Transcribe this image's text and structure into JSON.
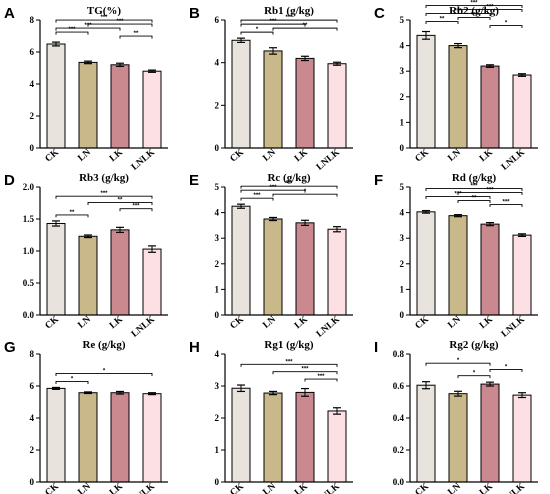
{
  "categories": [
    "CK",
    "LN",
    "LK",
    "LNLK"
  ],
  "colors": {
    "CK": "#e8e3dc",
    "LN": "#c8b88a",
    "LK": "#c9898f",
    "LNLK": "#fde0e4",
    "stroke": "#000000"
  },
  "chart_data": [
    {
      "type": "bar",
      "panel": "A",
      "title": "TG(%)",
      "categories": [
        "CK",
        "LN",
        "LK",
        "LNLK"
      ],
      "values": [
        6.5,
        5.35,
        5.2,
        4.8
      ],
      "errors": [
        0.12,
        0.08,
        0.1,
        0.07
      ],
      "ylim": [
        0,
        8
      ],
      "yticks": [
        0,
        2,
        4,
        6,
        8
      ],
      "significance": [
        {
          "from": 2,
          "to": 3,
          "label": "**"
        },
        {
          "from": 0,
          "to": 1,
          "label": "***"
        },
        {
          "from": 0,
          "to": 2,
          "label": "***"
        },
        {
          "from": 1,
          "to": 3,
          "label": "***"
        },
        {
          "from": 0,
          "to": 3,
          "label": "***"
        }
      ]
    },
    {
      "type": "bar",
      "panel": "B",
      "title": "Rb1 (g/kg)",
      "categories": [
        "CK",
        "LN",
        "LK",
        "LNLK"
      ],
      "values": [
        5.05,
        4.55,
        4.2,
        3.95
      ],
      "errors": [
        0.1,
        0.15,
        0.1,
        0.07
      ],
      "ylim": [
        0,
        6
      ],
      "yticks": [
        0,
        2,
        4,
        6
      ],
      "significance": [
        {
          "from": 0,
          "to": 1,
          "label": "*"
        },
        {
          "from": 1,
          "to": 3,
          "label": "**"
        },
        {
          "from": 0,
          "to": 2,
          "label": "***"
        },
        {
          "from": 0,
          "to": 3,
          "label": "***"
        }
      ]
    },
    {
      "type": "bar",
      "panel": "C",
      "title": "Rb2 (g/kg)",
      "categories": [
        "CK",
        "LN",
        "LK",
        "LNLK"
      ],
      "values": [
        4.4,
        4.0,
        3.2,
        2.85
      ],
      "errors": [
        0.15,
        0.08,
        0.05,
        0.05
      ],
      "ylim": [
        0,
        5
      ],
      "yticks": [
        0,
        1,
        2,
        3,
        4,
        5
      ],
      "significance": [
        {
          "from": 2,
          "to": 3,
          "label": "*"
        },
        {
          "from": 0,
          "to": 1,
          "label": "**"
        },
        {
          "from": 1,
          "to": 2,
          "label": "***"
        },
        {
          "from": 0,
          "to": 2,
          "label": "***"
        },
        {
          "from": 1,
          "to": 3,
          "label": "***"
        },
        {
          "from": 0,
          "to": 3,
          "label": "***"
        }
      ]
    },
    {
      "type": "bar",
      "panel": "D",
      "title": "Rb3 (g/kg)",
      "categories": [
        "CK",
        "LN",
        "LK",
        "LNLK"
      ],
      "values": [
        1.43,
        1.23,
        1.33,
        1.03
      ],
      "errors": [
        0.04,
        0.02,
        0.04,
        0.05
      ],
      "ylim": [
        0,
        2.0
      ],
      "yticks": [
        0.0,
        0.5,
        1.0,
        1.5,
        2.0
      ],
      "tick_decimals": 1,
      "significance": [
        {
          "from": 0,
          "to": 1,
          "label": "**"
        },
        {
          "from": 2,
          "to": 3,
          "label": "***"
        },
        {
          "from": 1,
          "to": 3,
          "label": "**"
        },
        {
          "from": 0,
          "to": 3,
          "label": "***"
        }
      ]
    },
    {
      "type": "bar",
      "panel": "E",
      "title": "Rc (g/kg)",
      "categories": [
        "CK",
        "LN",
        "LK",
        "LNLK"
      ],
      "values": [
        4.25,
        3.75,
        3.6,
        3.35
      ],
      "errors": [
        0.08,
        0.06,
        0.1,
        0.1
      ],
      "ylim": [
        0,
        5
      ],
      "yticks": [
        0,
        1,
        2,
        3,
        4,
        5
      ],
      "significance": [
        {
          "from": 0,
          "to": 1,
          "label": "***"
        },
        {
          "from": 1,
          "to": 3,
          "label": "*"
        },
        {
          "from": 0,
          "to": 2,
          "label": "***"
        },
        {
          "from": 0,
          "to": 3,
          "label": "***"
        }
      ]
    },
    {
      "type": "bar",
      "panel": "F",
      "title": "Rd (g/kg)",
      "categories": [
        "CK",
        "LN",
        "LK",
        "LNLK"
      ],
      "values": [
        4.03,
        3.88,
        3.55,
        3.12
      ],
      "errors": [
        0.05,
        0.04,
        0.06,
        0.05
      ],
      "ylim": [
        0,
        5
      ],
      "yticks": [
        0,
        1,
        2,
        3,
        4,
        5
      ],
      "significance": [
        {
          "from": 2,
          "to": 3,
          "label": "***"
        },
        {
          "from": 1,
          "to": 2,
          "label": "**"
        },
        {
          "from": 0,
          "to": 2,
          "label": "***"
        },
        {
          "from": 1,
          "to": 3,
          "label": "***"
        },
        {
          "from": 0,
          "to": 3,
          "label": "***"
        }
      ]
    },
    {
      "type": "bar",
      "panel": "G",
      "title": "Re (g/kg)",
      "categories": [
        "CK",
        "LN",
        "LK",
        "LNLK"
      ],
      "values": [
        5.85,
        5.58,
        5.58,
        5.52
      ],
      "errors": [
        0.06,
        0.05,
        0.08,
        0.06
      ],
      "ylim": [
        0,
        8
      ],
      "yticks": [
        0,
        2,
        4,
        6,
        8
      ],
      "significance": [
        {
          "from": 0,
          "to": 1,
          "label": "*"
        },
        {
          "from": 0,
          "to": 3,
          "label": "*"
        }
      ]
    },
    {
      "type": "bar",
      "panel": "H",
      "title": "Rg1 (g/kg)",
      "categories": [
        "CK",
        "LN",
        "LK",
        "LNLK"
      ],
      "values": [
        2.93,
        2.78,
        2.8,
        2.22
      ],
      "errors": [
        0.1,
        0.05,
        0.12,
        0.1
      ],
      "ylim": [
        0,
        4
      ],
      "yticks": [
        0,
        1,
        2,
        3,
        4
      ],
      "significance": [
        {
          "from": 2,
          "to": 3,
          "label": "***"
        },
        {
          "from": 1,
          "to": 3,
          "label": "***"
        },
        {
          "from": 0,
          "to": 3,
          "label": "***"
        }
      ]
    },
    {
      "type": "bar",
      "panel": "I",
      "title": "Rg2 (g/kg)",
      "categories": [
        "CK",
        "LN",
        "LK",
        "LNLK"
      ],
      "values": [
        0.605,
        0.552,
        0.612,
        0.543
      ],
      "errors": [
        0.022,
        0.015,
        0.012,
        0.015
      ],
      "ylim": [
        0,
        0.8
      ],
      "yticks": [
        0.0,
        0.2,
        0.4,
        0.6,
        0.8
      ],
      "tick_decimals": 1,
      "significance": [
        {
          "from": 1,
          "to": 2,
          "label": "*"
        },
        {
          "from": 2,
          "to": 3,
          "label": "*"
        },
        {
          "from": 0,
          "to": 2,
          "label": "*"
        }
      ]
    }
  ]
}
